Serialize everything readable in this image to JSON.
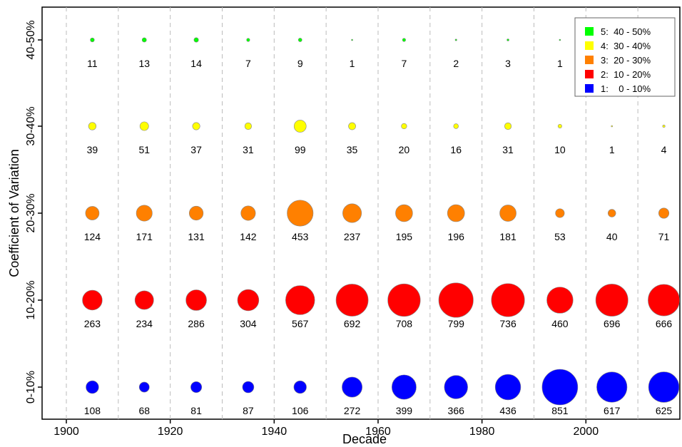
{
  "chart_data": {
    "type": "scatter",
    "subtype": "bubble",
    "xlabel": "Decade",
    "ylabel": "Coefficient of Variation",
    "x_ticks": [
      "1900",
      "1920",
      "1940",
      "1960",
      "1980",
      "2000"
    ],
    "decades": [
      1905,
      1915,
      1925,
      1935,
      1945,
      1955,
      1965,
      1975,
      1985,
      1995,
      2005,
      2015
    ],
    "xlim": [
      1900,
      2020
    ],
    "categories": [
      "0-10%",
      "10-20%",
      "20-30%",
      "30-40%",
      "40-50%"
    ],
    "series": [
      {
        "name": "1:    0 - 10%",
        "category": "0-10%",
        "color": "#0000ff",
        "values": [
          108,
          68,
          81,
          87,
          106,
          272,
          399,
          366,
          436,
          851,
          617,
          625
        ]
      },
      {
        "name": "2:  10 - 20%",
        "category": "10-20%",
        "color": "#ff0000",
        "values": [
          263,
          234,
          286,
          304,
          567,
          692,
          708,
          799,
          736,
          460,
          696,
          666
        ]
      },
      {
        "name": "3:  20 - 30%",
        "category": "20-30%",
        "color": "#ff8000",
        "values": [
          124,
          171,
          131,
          142,
          453,
          237,
          195,
          196,
          181,
          53,
          40,
          71
        ]
      },
      {
        "name": "4:  30 - 40%",
        "category": "30-40%",
        "color": "#ffff00",
        "values": [
          39,
          51,
          37,
          31,
          99,
          35,
          20,
          16,
          31,
          10,
          1,
          4
        ]
      },
      {
        "name": "5:  40 - 50%",
        "category": "40-50%",
        "color": "#00ff00",
        "values": [
          11,
          13,
          14,
          7,
          9,
          1,
          7,
          2,
          3,
          1,
          null,
          null
        ]
      }
    ],
    "legend_position": "top-right",
    "grid": "dashed vertical lines at decade boundaries"
  }
}
